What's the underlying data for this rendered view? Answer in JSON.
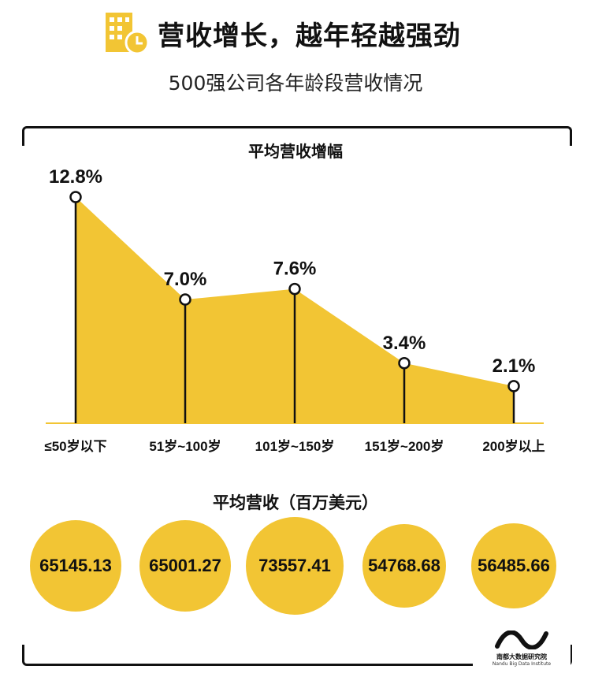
{
  "header": {
    "title": "营收增长，越年轻越强劲",
    "subtitle": "500强公司各年龄段营收情况",
    "icon": "building-clock-icon"
  },
  "colors": {
    "accent": "#f2c534",
    "line": "#111111"
  },
  "chart_data": [
    {
      "type": "area",
      "title": "平均营收增幅",
      "categories": [
        "≤50岁以下",
        "51岁~100岁",
        "101岁~150岁",
        "151岁~200岁",
        "200岁以上"
      ],
      "values": [
        12.8,
        7.0,
        7.6,
        3.4,
        2.1
      ],
      "value_labels": [
        "12.8%",
        "7.0%",
        "7.6%",
        "3.4%",
        "2.1%"
      ],
      "unit": "%",
      "ylim": [
        0,
        14
      ],
      "grid": false
    },
    {
      "type": "bubble",
      "title": "平均营收（百万美元）",
      "categories": [
        "≤50岁以下",
        "51岁~100岁",
        "101岁~150岁",
        "151岁~200岁",
        "200岁以上"
      ],
      "values": [
        65145.13,
        65001.27,
        73557.41,
        54768.68,
        56485.66
      ],
      "value_labels": [
        "65145.13",
        "65001.27",
        "73557.41",
        "54768.68",
        "56485.66"
      ]
    }
  ],
  "brand": {
    "name": "南都大数据研究院",
    "sub": "Nandu Big Data Institute"
  }
}
